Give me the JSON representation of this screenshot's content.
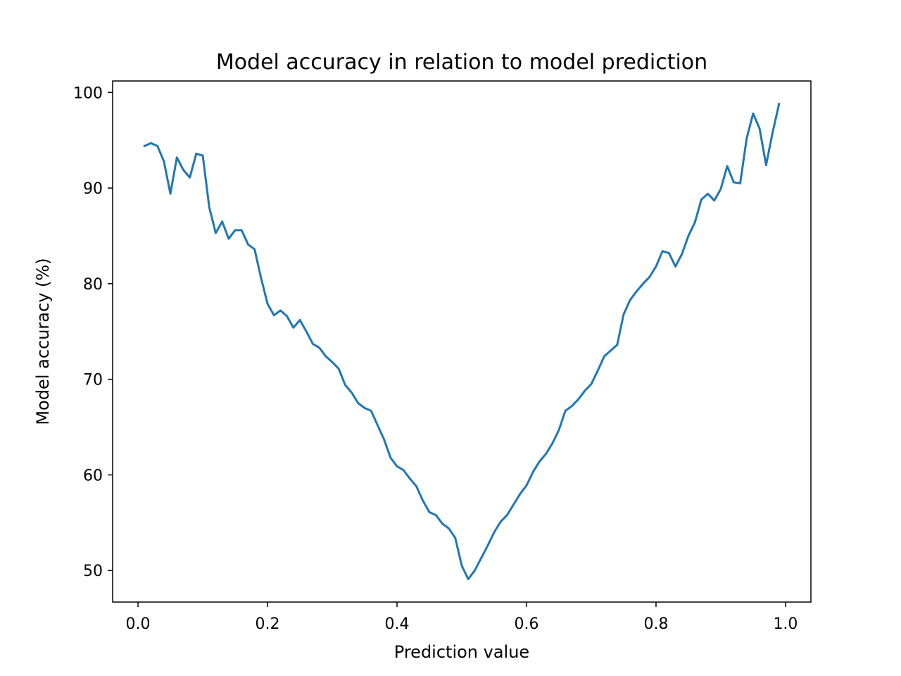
{
  "chart_data": {
    "type": "line",
    "title": "Model accuracy in relation to model prediction",
    "xlabel": "Prediction value",
    "ylabel": "Model accuracy (%)",
    "xlim": [
      -0.0392,
      1.0392
    ],
    "ylim": [
      46.7,
      101.2
    ],
    "xticks": [
      0.0,
      0.2,
      0.4,
      0.6,
      0.8,
      1.0
    ],
    "xtick_labels": [
      "0.0",
      "0.2",
      "0.4",
      "0.6",
      "0.8",
      "1.0"
    ],
    "yticks": [
      50,
      60,
      70,
      80,
      90,
      100
    ],
    "ytick_labels": [
      "50",
      "60",
      "70",
      "80",
      "90",
      "100"
    ],
    "grid": false,
    "legend": "none",
    "line_color": "#1f77b4",
    "series": [
      {
        "x": [
          0.01,
          0.02,
          0.03,
          0.04,
          0.05,
          0.06,
          0.07,
          0.08,
          0.09,
          0.1,
          0.11,
          0.12,
          0.13,
          0.14,
          0.15,
          0.16,
          0.17,
          0.18,
          0.19,
          0.2,
          0.21,
          0.22,
          0.23,
          0.24,
          0.25,
          0.26,
          0.27,
          0.28,
          0.29,
          0.3,
          0.31,
          0.32,
          0.33,
          0.34,
          0.35,
          0.36,
          0.37,
          0.38,
          0.39,
          0.4,
          0.41,
          0.42,
          0.43,
          0.44,
          0.45,
          0.46,
          0.47,
          0.48,
          0.49,
          0.5,
          0.51,
          0.52,
          0.53,
          0.54,
          0.55,
          0.56,
          0.57,
          0.58,
          0.59,
          0.6,
          0.61,
          0.62,
          0.63,
          0.64,
          0.65,
          0.66,
          0.67,
          0.68,
          0.69,
          0.7,
          0.71,
          0.72,
          0.73,
          0.74,
          0.75,
          0.76,
          0.77,
          0.78,
          0.79,
          0.8,
          0.81,
          0.82,
          0.83,
          0.84,
          0.85,
          0.86,
          0.87,
          0.88,
          0.89,
          0.9,
          0.91,
          0.92,
          0.93,
          0.94,
          0.95,
          0.96,
          0.97,
          0.98,
          0.99
        ],
        "values": [
          94.4,
          94.7,
          94.4,
          92.8,
          89.4,
          93.2,
          91.9,
          91.1,
          93.6,
          93.4,
          88.0,
          85.3,
          86.5,
          84.7,
          85.6,
          85.6,
          84.1,
          83.6,
          80.6,
          77.9,
          76.7,
          77.2,
          76.6,
          75.4,
          76.2,
          75.0,
          73.7,
          73.3,
          72.4,
          71.8,
          71.1,
          69.4,
          68.6,
          67.5,
          67.0,
          66.7,
          65.2,
          63.7,
          61.8,
          60.9,
          60.5,
          59.6,
          58.8,
          57.3,
          56.1,
          55.8,
          54.9,
          54.4,
          53.4,
          50.5,
          49.1,
          50.0,
          51.3,
          52.6,
          54.0,
          55.1,
          55.8,
          56.9,
          58.0,
          58.9,
          60.3,
          61.4,
          62.2,
          63.3,
          64.7,
          66.7,
          67.2,
          67.9,
          68.8,
          69.5,
          70.9,
          72.4,
          73.0,
          73.6,
          76.8,
          78.3,
          79.2,
          80.0,
          80.7,
          81.8,
          83.4,
          83.2,
          81.8,
          83.1,
          85.0,
          86.4,
          88.8,
          89.4,
          88.7,
          89.9,
          92.3,
          90.6,
          90.5,
          95.2,
          97.8,
          96.2,
          92.4,
          95.8,
          98.8
        ]
      }
    ]
  }
}
